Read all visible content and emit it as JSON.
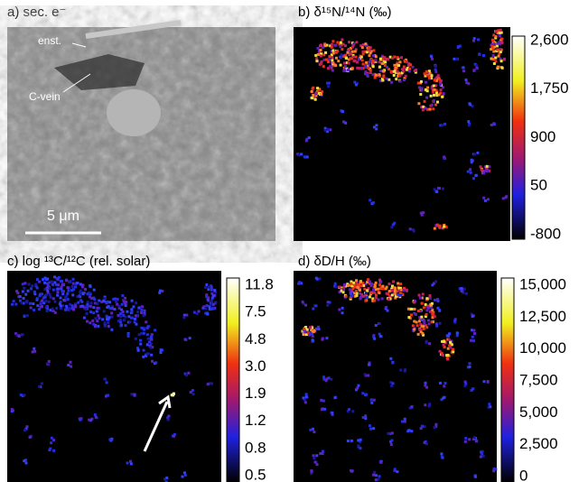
{
  "panels": [
    {
      "title": "a) sec. e⁻",
      "annotations": [
        "enst.",
        "C-vein"
      ],
      "scale_bar": "5 μm"
    },
    {
      "title": "b) δ¹⁵N/¹⁴N (‰)",
      "colorbar_ticks": [
        "2,600",
        "1,750",
        "900",
        "50",
        "-800"
      ]
    },
    {
      "title": "c) log ¹³C/¹²C (rel. solar)",
      "colorbar_ticks": [
        "11.8",
        "7.5",
        "4.8",
        "3.0",
        "1.9",
        "1.2",
        "0.8",
        "0.5"
      ]
    },
    {
      "title": "d) δD/H (‰)",
      "colorbar_ticks": [
        "15,000",
        "12,500",
        "10,000",
        "7,500",
        "5,000",
        "2,500",
        "0"
      ]
    }
  ]
}
